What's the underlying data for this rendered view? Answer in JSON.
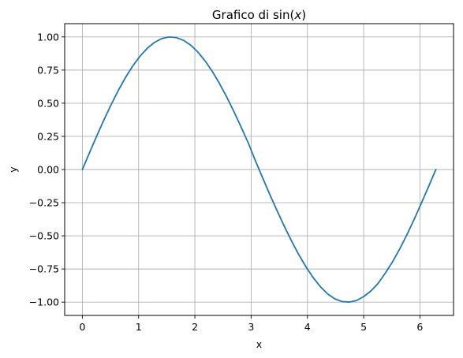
{
  "chart_data": {
    "type": "line",
    "title_prefix": "Grafico di sin(",
    "title_var": "x",
    "title_suffix": ")",
    "xlabel": "x",
    "ylabel": "y",
    "xlim": [
      -0.3142,
      6.5974
    ],
    "ylim": [
      -1.1,
      1.1
    ],
    "grid": true,
    "x_ticks": [
      {
        "value": 0,
        "label": "0"
      },
      {
        "value": 1,
        "label": "1"
      },
      {
        "value": 2,
        "label": "2"
      },
      {
        "value": 3,
        "label": "3"
      },
      {
        "value": 4,
        "label": "4"
      },
      {
        "value": 5,
        "label": "5"
      },
      {
        "value": 6,
        "label": "6"
      }
    ],
    "y_ticks": [
      {
        "value": -1.0,
        "label": "−1.00"
      },
      {
        "value": -0.75,
        "label": "−0.75"
      },
      {
        "value": -0.5,
        "label": "−0.50"
      },
      {
        "value": -0.25,
        "label": "−0.25"
      },
      {
        "value": 0.0,
        "label": "0.00"
      },
      {
        "value": 0.25,
        "label": "0.25"
      },
      {
        "value": 0.5,
        "label": "0.50"
      },
      {
        "value": 0.75,
        "label": "0.75"
      },
      {
        "value": 1.0,
        "label": "1.00"
      }
    ],
    "series": [
      {
        "color": "#1f77b4",
        "x": [
          0.0,
          0.1282,
          0.2565,
          0.3847,
          0.5129,
          0.6411,
          0.7694,
          0.8976,
          1.0258,
          1.1541,
          1.2823,
          1.4105,
          1.5387,
          1.667,
          1.7952,
          1.9234,
          2.0517,
          2.1799,
          2.3081,
          2.4363,
          2.5646,
          2.6928,
          2.821,
          2.9493,
          3.0775,
          3.2057,
          3.3339,
          3.4622,
          3.5904,
          3.7186,
          3.8468,
          3.9751,
          4.1033,
          4.2315,
          4.3598,
          4.488,
          4.6162,
          4.7444,
          4.8727,
          5.0009,
          5.1291,
          5.2574,
          5.3856,
          5.5138,
          5.642,
          5.7703,
          5.8985,
          6.0267,
          6.155,
          6.2832
        ],
        "y": [
          0.0,
          0.1279,
          0.2537,
          0.3753,
          0.4907,
          0.5981,
          0.6957,
          0.7818,
          0.8551,
          0.9144,
          0.9587,
          0.9872,
          0.9995,
          0.9954,
          0.9749,
          0.9385,
          0.8866,
          0.8204,
          0.7409,
          0.6495,
          0.5479,
          0.4378,
          0.3212,
          0.2003,
          0.0641,
          -0.0641,
          -0.1904,
          -0.3115,
          -0.4286,
          -0.5393,
          -0.6419,
          -0.7343,
          -0.815,
          -0.8838,
          -0.9383,
          -0.9751,
          -0.9956,
          -0.9994,
          -0.9877,
          -0.958,
          -0.9158,
          -0.8583,
          -0.7806,
          -0.6955,
          -0.5977,
          -0.4906,
          -0.3748,
          -0.2522,
          -0.1278,
          0.0
        ]
      }
    ]
  }
}
